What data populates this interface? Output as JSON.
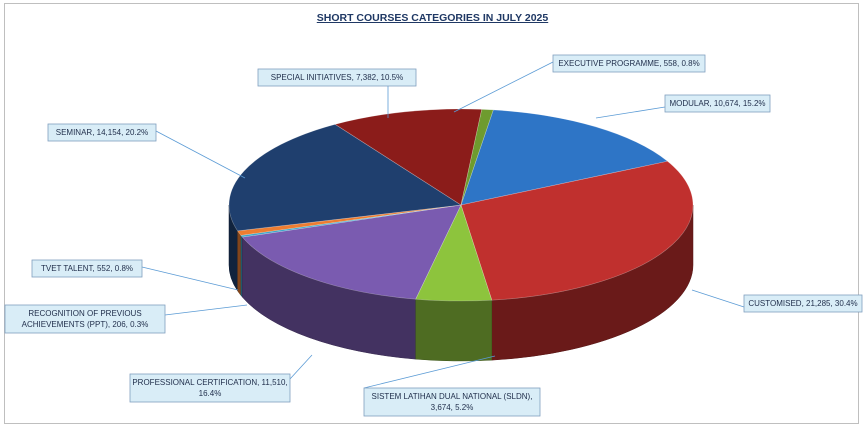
{
  "chart_data": {
    "type": "pie",
    "title": "SHORT COURSES CATEGORIES IN JULY 2025",
    "slices": [
      {
        "name": "MODULAR",
        "value": 10674,
        "percent": "15.2%",
        "label_lines": [
          "MODULAR, 10,674, 15.2%"
        ],
        "color": "#2e75c6"
      },
      {
        "name": "CUSTOMISED",
        "value": 21285,
        "percent": "30.4%",
        "label_lines": [
          "CUSTOMISED, 21,285, 30.4%"
        ],
        "color": "#c0302e"
      },
      {
        "name": "SISTEM LATIHAN DUAL NATIONAL (SLDN)",
        "value": 3674,
        "percent": "5.2%",
        "label_lines": [
          "SISTEM LATIHAN DUAL NATIONAL (SLDN),",
          "3,674, 5.2%"
        ],
        "color": "#8dc43d"
      },
      {
        "name": "PROFESSIONAL CERTIFICATION",
        "value": 11510,
        "percent": "16.4%",
        "label_lines": [
          "PROFESSIONAL CERTIFICATION, 11,510,",
          "16.4%"
        ],
        "color": "#7a5bb0"
      },
      {
        "name": "RECOGNITION OF PREVIOUS ACHIEVEMENTS (PPT)",
        "value": 206,
        "percent": "0.3%",
        "label_lines": [
          "RECOGNITION OF PREVIOUS",
          "ACHIEVEMENTS (PPT), 206, 0.3%"
        ],
        "color": "#3aa6c9"
      },
      {
        "name": "TVET TALENT",
        "value": 552,
        "percent": "0.8%",
        "label_lines": [
          "TVET TALENT, 552, 0.8%"
        ],
        "color": "#ed7d31"
      },
      {
        "name": "SEMINAR",
        "value": 14154,
        "percent": "20.2%",
        "label_lines": [
          "SEMINAR, 14,154, 20.2%"
        ],
        "color": "#1f3f6e"
      },
      {
        "name": "SPECIAL INITIATIVES",
        "value": 7382,
        "percent": "10.5%",
        "label_lines": [
          "SPECIAL INITIATIVES, 7,382, 10.5%"
        ],
        "color": "#8b1c1a"
      },
      {
        "name": "EXECUTIVE PROGRAMME",
        "value": 558,
        "percent": "0.8%",
        "label_lines": [
          "EXECUTIVE PROGRAMME, 558, 0.8%"
        ],
        "color": "#6e9b2e"
      }
    ],
    "legend": "none",
    "style": "3d-pie"
  }
}
